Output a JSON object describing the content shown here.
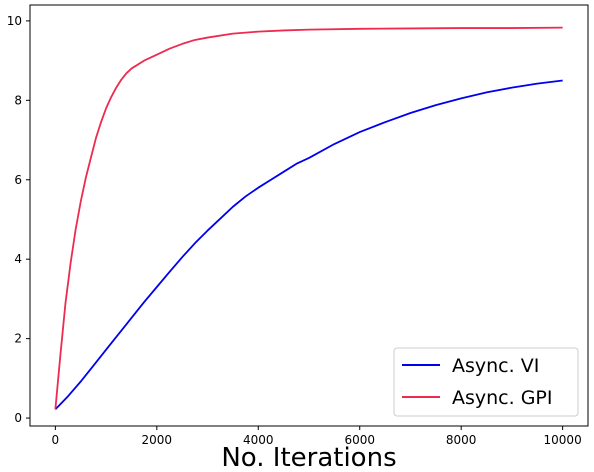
{
  "chart_data": {
    "type": "line",
    "title": "",
    "xlabel": "No. Iterations",
    "ylabel": "",
    "xlim": [
      -500,
      10500
    ],
    "ylim": [
      -0.2,
      10.4
    ],
    "xticks": [
      0,
      2000,
      4000,
      6000,
      8000,
      10000
    ],
    "yticks": [
      0,
      2,
      4,
      6,
      8,
      10
    ],
    "grid": false,
    "legend": "lower-right",
    "series": [
      {
        "name": "Async. VI",
        "color": "#0000ee",
        "x": [
          0,
          250,
          500,
          750,
          1000,
          1250,
          1500,
          1750,
          2000,
          2250,
          2500,
          2750,
          3000,
          3250,
          3500,
          3750,
          4000,
          4250,
          4500,
          4750,
          5000,
          5500,
          6000,
          6500,
          7000,
          7500,
          8000,
          8500,
          9000,
          9500,
          10000
        ],
        "y": [
          0.22,
          0.55,
          0.92,
          1.32,
          1.72,
          2.12,
          2.52,
          2.92,
          3.3,
          3.68,
          4.05,
          4.4,
          4.72,
          5.02,
          5.32,
          5.58,
          5.8,
          6.0,
          6.2,
          6.4,
          6.55,
          6.9,
          7.2,
          7.45,
          7.68,
          7.88,
          8.05,
          8.2,
          8.32,
          8.42,
          8.5
        ]
      },
      {
        "name": "Async. GPI",
        "color": "#ee2a4e",
        "x": [
          0,
          100,
          200,
          300,
          400,
          500,
          600,
          700,
          800,
          900,
          1000,
          1100,
          1200,
          1300,
          1400,
          1500,
          1750,
          2000,
          2250,
          2500,
          2750,
          3000,
          3500,
          4000,
          4500,
          5000,
          6000,
          7000,
          8000,
          9000,
          10000
        ],
        "y": [
          0.22,
          1.6,
          2.9,
          3.9,
          4.75,
          5.45,
          6.05,
          6.55,
          7.05,
          7.45,
          7.8,
          8.08,
          8.32,
          8.52,
          8.68,
          8.8,
          9.0,
          9.15,
          9.3,
          9.42,
          9.52,
          9.58,
          9.68,
          9.73,
          9.76,
          9.78,
          9.8,
          9.81,
          9.82,
          9.82,
          9.83
        ]
      }
    ]
  }
}
